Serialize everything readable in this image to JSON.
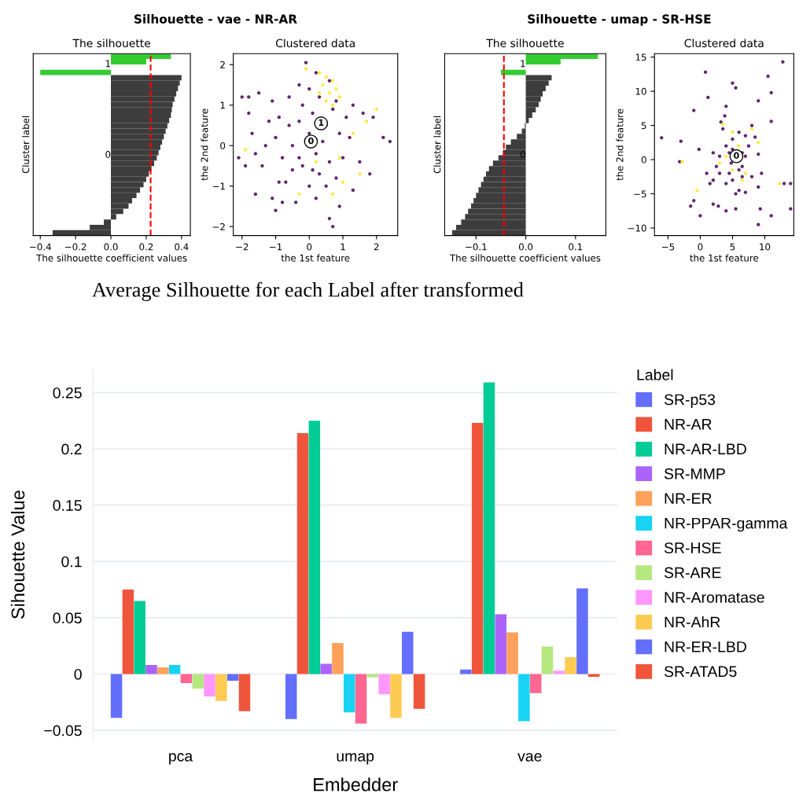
{
  "chart_data": [
    {
      "type": "bar",
      "orientation": "horizontal",
      "stacked": true,
      "title": "Silhouette - vae - NR-AR",
      "subtitle": "The silhouette",
      "xlabel": "The silhouette coefficient values",
      "ylabel": "Cluster label",
      "categories": [
        null,
        null,
        null,
        null,
        null,
        null,
        null,
        null,
        null,
        null,
        null,
        null,
        null,
        null,
        null,
        null,
        null,
        null,
        null,
        null,
        null,
        null,
        null,
        null,
        null,
        null,
        null,
        null,
        null,
        null,
        null,
        null,
        null,
        null
      ],
      "series": [
        {
          "color": "#3d3d3d",
          "values": [
            null,
            null,
            null,
            null,
            0.4,
            0.39,
            0.38,
            0.37,
            0.36,
            0.35,
            0.345,
            0.34,
            0.33,
            0.32,
            0.31,
            0.3,
            0.29,
            0.28,
            0.27,
            0.26,
            0.245,
            0.23,
            0.215,
            0.2,
            0.185,
            0.165,
            0.145,
            0.12,
            0.1,
            0.07,
            0.03,
            -0.04,
            -0.12,
            -0.33
          ]
        },
        {
          "color": "#33cc33",
          "values": [
            0.34,
            0.2,
            0.0,
            -0.4,
            null,
            null,
            null,
            null,
            null,
            null,
            null,
            null,
            null,
            null,
            null,
            null,
            null,
            null,
            null,
            null,
            null,
            null,
            null,
            null,
            null,
            null,
            null,
            null,
            null,
            null,
            null,
            null,
            null,
            null
          ]
        }
      ],
      "annotations": [
        "0",
        "1"
      ],
      "ref_lines": [
        {
          "axis": "x",
          "value": 0.225,
          "color": "#ff0000",
          "line_style": "dashed"
        }
      ],
      "xlim": [
        -0.44,
        0.45
      ],
      "xticks": [
        {
          "value": -0.4,
          "label": "−0.4"
        },
        {
          "value": -0.2,
          "label": "−0.2"
        },
        {
          "value": 0,
          "label": "0.0"
        },
        0.2,
        0.4
      ],
      "tick_labels": "x"
    },
    {
      "type": "scatter",
      "subtitle": "Clustered data",
      "xlabel": "the 1st feature",
      "ylabel": "the 2nd feature",
      "marker": "circle",
      "series": [
        {
          "color": "#440154",
          "x": [
            -0.8,
            -1.0,
            -1.3,
            -0.6,
            -0.9,
            -1.2,
            -0.5,
            -0.9,
            -1.4,
            -1.6,
            -1.7,
            -1.9,
            -1.6,
            -1.1,
            -0.7,
            -0.3,
            0.0,
            0.2,
            0.1,
            0.3,
            0.0,
            -0.2,
            0.4,
            0.6,
            0.3,
            0.0,
            0.2,
            0.5,
            0.8,
            0.9,
            1.1,
            0.8,
            0.6,
            0.2,
            -0.1,
            -0.3,
            -0.6,
            1.3,
            1.6,
            1.9,
            2.2,
            2.4,
            1.5,
            1.8,
            1.3,
            0.9,
            0.6,
            0.7,
            -0.4,
            -0.8,
            -1.0,
            -2.0,
            -1.8,
            -1.5,
            -1.1,
            -2.1,
            -0.2,
            0.5,
            -0.5,
            1.0,
            1.2,
            -1.8,
            0.1,
            0.7,
            -0.3
          ],
          "values": [
            -0.3,
            0.2,
            0.0,
            0.5,
            0.7,
            0.6,
            -0.6,
            -0.9,
            -0.5,
            -0.2,
            0.3,
            -0.5,
            -1.2,
            -1.3,
            -0.9,
            -0.3,
            0.3,
            -0.2,
            0.8,
            1.2,
            1.4,
            1.0,
            0.1,
            -0.4,
            -0.7,
            -1.0,
            -1.3,
            -1.0,
            -0.8,
            0.3,
            0.7,
            1.1,
            1.6,
            1.8,
            2.05,
            1.5,
            1.2,
            1.0,
            0.8,
            0.7,
            0.2,
            0.1,
            -0.4,
            -0.7,
            -1.1,
            -1.5,
            -1.8,
            -2.0,
            -1.4,
            -1.4,
            -1.6,
            1.2,
            1.2,
            1.3,
            1.1,
            -0.3,
            -0.5,
            0.5,
            0.0,
            -0.3,
            0.2,
            0.8,
            -0.6,
            0.9,
            0.6
          ]
        },
        {
          "color": "#fde725",
          "x": [
            0.3,
            0.5,
            0.7,
            0.4,
            0.6,
            0.8,
            0.5,
            0.7,
            0.3,
            0.9,
            2.0,
            1.5,
            1.0,
            0.7,
            -0.3,
            0.9,
            1.3,
            -1.9,
            0.2,
            1.7,
            -0.1
          ],
          "values": [
            1.8,
            1.7,
            1.6,
            1.5,
            1.3,
            1.4,
            1.1,
            1.0,
            1.3,
            1.2,
            0.9,
            -0.7,
            -0.9,
            -1.2,
            -1.2,
            -0.3,
            0.3,
            -0.1,
            -0.4,
            0.6,
            1.9
          ]
        }
      ],
      "annotations": [
        {
          "text": "0",
          "x": 0.05,
          "y": 0.1
        },
        {
          "text": "1",
          "x": 0.35,
          "y": 0.55
        }
      ],
      "xlim": [
        -2.26,
        2.63
      ],
      "xticks": [
        {
          "value": -2,
          "label": "−2"
        },
        {
          "value": -1,
          "label": "−1"
        },
        0,
        1,
        2
      ],
      "ylim": [
        -2.22,
        2.27
      ],
      "yticks": [
        {
          "value": -2,
          "label": "−2"
        },
        {
          "value": -1,
          "label": "−1"
        },
        0,
        1,
        2
      ]
    },
    {
      "type": "bar",
      "orientation": "horizontal",
      "stacked": true,
      "title": "Silhouette - umap - SR-HSE",
      "subtitle": "The silhouette",
      "xlabel": "The silhouette coefficient values",
      "ylabel": "Cluster label",
      "categories": [
        null,
        null,
        null,
        null,
        null,
        null,
        null,
        null,
        null,
        null,
        null,
        null,
        null,
        null,
        null,
        null,
        null,
        null,
        null,
        null,
        null,
        null,
        null,
        null,
        null,
        null,
        null,
        null,
        null,
        null,
        null,
        null,
        null,
        null
      ],
      "series": [
        {
          "color": "#3d3d3d",
          "values": [
            null,
            null,
            null,
            null,
            0.052,
            0.046,
            0.04,
            0.034,
            0.03,
            0.026,
            0.02,
            0.013,
            0.006,
            -0.002,
            -0.008,
            -0.018,
            -0.03,
            -0.04,
            -0.046,
            -0.055,
            -0.066,
            -0.074,
            -0.08,
            -0.085,
            -0.09,
            -0.095,
            -0.1,
            -0.105,
            -0.11,
            -0.116,
            -0.122,
            -0.13,
            -0.14,
            -0.148
          ]
        },
        {
          "color": "#33cc33",
          "values": [
            0.145,
            0.07,
            0.0,
            -0.05,
            null,
            null,
            null,
            null,
            null,
            null,
            null,
            null,
            null,
            null,
            null,
            null,
            null,
            null,
            null,
            null,
            null,
            null,
            null,
            null,
            null,
            null,
            null,
            null,
            null,
            null,
            null,
            null,
            null,
            null
          ]
        }
      ],
      "annotations": [
        "0",
        "1"
      ],
      "ref_lines": [
        {
          "axis": "x",
          "value": -0.044,
          "color": "#ff0000",
          "line_style": "dashed"
        }
      ],
      "xlim": [
        -0.163,
        0.161
      ],
      "xticks": [
        {
          "value": -0.1,
          "label": "−0.1"
        },
        {
          "value": 0,
          "label": "0.0"
        },
        0.1
      ],
      "tick_labels": "x"
    },
    {
      "type": "scatter",
      "subtitle": "Clustered data",
      "xlabel": "the 1st feature",
      "ylabel": "the 2nd feature",
      "marker": "circle",
      "series": [
        {
          "color": "#440154",
          "x": [
            3,
            4,
            4.5,
            5,
            6,
            7,
            8,
            7.5,
            6.5,
            5,
            4,
            6,
            3,
            2.5,
            2,
            8,
            9,
            7,
            5.5,
            6.5,
            4.5,
            3.5,
            3.2,
            3.8,
            4,
            8.5,
            9,
            9.5,
            1,
            1.5,
            2,
            6,
            5,
            6.5,
            4.8,
            7,
            -6,
            -3,
            -1,
            0.8,
            1.2,
            -3.2,
            -1.5,
            -1,
            0,
            2,
            2.8,
            4,
            5.5,
            5.5,
            5,
            9,
            9.3,
            11,
            10.5,
            12.8,
            13,
            14,
            14,
            9,
            11,
            11,
            -0.2
          ],
          "values": [
            0.5,
            2,
            -2,
            3,
            4,
            3.5,
            5,
            2,
            -1,
            -3,
            -3.5,
            -4.5,
            -2,
            -1,
            -3,
            -2.5,
            -4,
            -4.8,
            -5,
            1,
            1,
            4.5,
            5.5,
            6.4,
            7.8,
            3.3,
            0.8,
            -2,
            -2,
            -3.5,
            1,
            -1.5,
            1.5,
            -2.5,
            -0.5,
            0.5,
            3.2,
            2.7,
            7.2,
            12.8,
            9.1,
            -0.3,
            -6.8,
            -6,
            -8.2,
            -6.5,
            -6.8,
            -7.5,
            -7.2,
            10.5,
            11.2,
            -9.5,
            -7.2,
            -8.2,
            12.2,
            14.3,
            -3.5,
            -3.5,
            -7.2,
            8.6,
            9.8,
            5.6,
            1.5
          ]
        },
        {
          "color": "#fde725",
          "x": [
            4,
            5,
            6,
            7,
            3.5,
            8,
            -0.5,
            12.3,
            9,
            5,
            3,
            6.5,
            -2.8
          ],
          "values": [
            0.5,
            -1.5,
            2,
            -2,
            5.2,
            4.5,
            -4.5,
            -3.5,
            2.5,
            4,
            -0.5,
            -3,
            -0.3
          ]
        }
      ],
      "annotations": [
        {
          "text": "0",
          "x": 5.6,
          "y": 0.5
        }
      ],
      "xlim": [
        -7.1,
        14.5
      ],
      "xticks": [
        {
          "value": -5,
          "label": "−5"
        },
        0,
        5,
        10
      ],
      "ylim": [
        -11.1,
        15.5
      ],
      "yticks": [
        {
          "value": -10,
          "label": "−10"
        },
        {
          "value": -5,
          "label": "−5"
        },
        0,
        5,
        10,
        15
      ]
    },
    {
      "type": "bar",
      "title": "Average Silhouette for each Label after transformed",
      "xlabel": "Embedder",
      "ylabel": "Sihouette Value",
      "legend_title": "Label",
      "legend": "right",
      "grid": "y",
      "categories": [
        "pca",
        "umap",
        "vae"
      ],
      "series": [
        {
          "name": "SR-p53",
          "color": "#636efa",
          "values": [
            -0.039,
            -0.04,
            0.004
          ]
        },
        {
          "name": "NR-AR",
          "color": "#ef553b",
          "values": [
            0.075,
            0.214,
            0.223
          ]
        },
        {
          "name": "NR-AR-LBD",
          "color": "#00cc96",
          "values": [
            0.065,
            0.225,
            0.259
          ]
        },
        {
          "name": "SR-MMP",
          "color": "#ab63fa",
          "values": [
            0.008,
            0.009,
            0.053
          ]
        },
        {
          "name": "NR-ER",
          "color": "#ffa15a",
          "values": [
            0.006,
            0.0275,
            0.037
          ]
        },
        {
          "name": "NR-PPAR-gamma",
          "color": "#19d3f3",
          "values": [
            0.008,
            -0.034,
            -0.042
          ]
        },
        {
          "name": "SR-HSE",
          "color": "#ff6692",
          "values": [
            -0.008,
            -0.044,
            -0.017
          ]
        },
        {
          "name": "SR-ARE",
          "color": "#b6e880",
          "values": [
            -0.013,
            -0.003,
            0.0245
          ]
        },
        {
          "name": "NR-Aromatase",
          "color": "#ff97ff",
          "values": [
            -0.02,
            -0.018,
            0.003
          ]
        },
        {
          "name": "NR-AhR",
          "color": "#fecb52",
          "values": [
            -0.024,
            -0.039,
            0.015
          ]
        },
        {
          "name": "NR-ER-LBD",
          "color": "#636efa",
          "values": [
            -0.006,
            0.0375,
            0.076
          ]
        },
        {
          "name": "SR-ATAD5",
          "color": "#ef553b",
          "values": [
            -0.033,
            -0.031,
            -0.0025
          ]
        }
      ],
      "ylim": [
        -0.058,
        0.27
      ],
      "yticks": [
        {
          "value": -0.05,
          "label": "−0.05"
        },
        0,
        0.05,
        0.1,
        0.15,
        0.2,
        0.25
      ]
    }
  ]
}
